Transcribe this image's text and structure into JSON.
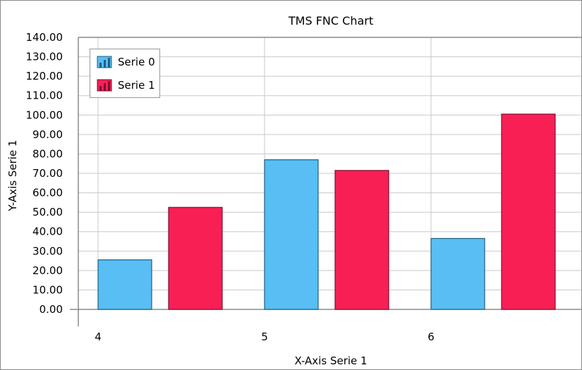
{
  "chart_data": {
    "type": "bar",
    "title": "TMS FNC Chart",
    "xlabel": "X-Axis Serie 1",
    "ylabel": "Y-Axis Serie 1",
    "categories": [
      "4",
      "5",
      "6"
    ],
    "ylim": [
      0,
      140
    ],
    "ytick_step": 10,
    "yticks": [
      "0.00",
      "10.00",
      "20.00",
      "30.00",
      "40.00",
      "50.00",
      "60.00",
      "70.00",
      "80.00",
      "90.00",
      "100.00",
      "110.00",
      "120.00",
      "130.00",
      "140.00"
    ],
    "grid": true,
    "legend_position": "top-left",
    "series": [
      {
        "name": "Serie 0",
        "color": "#58BEF3",
        "values": [
          25.5,
          77,
          36.5
        ]
      },
      {
        "name": "Serie 1",
        "color": "#F81F55",
        "values": [
          52.5,
          71.5,
          100.5
        ]
      }
    ]
  }
}
